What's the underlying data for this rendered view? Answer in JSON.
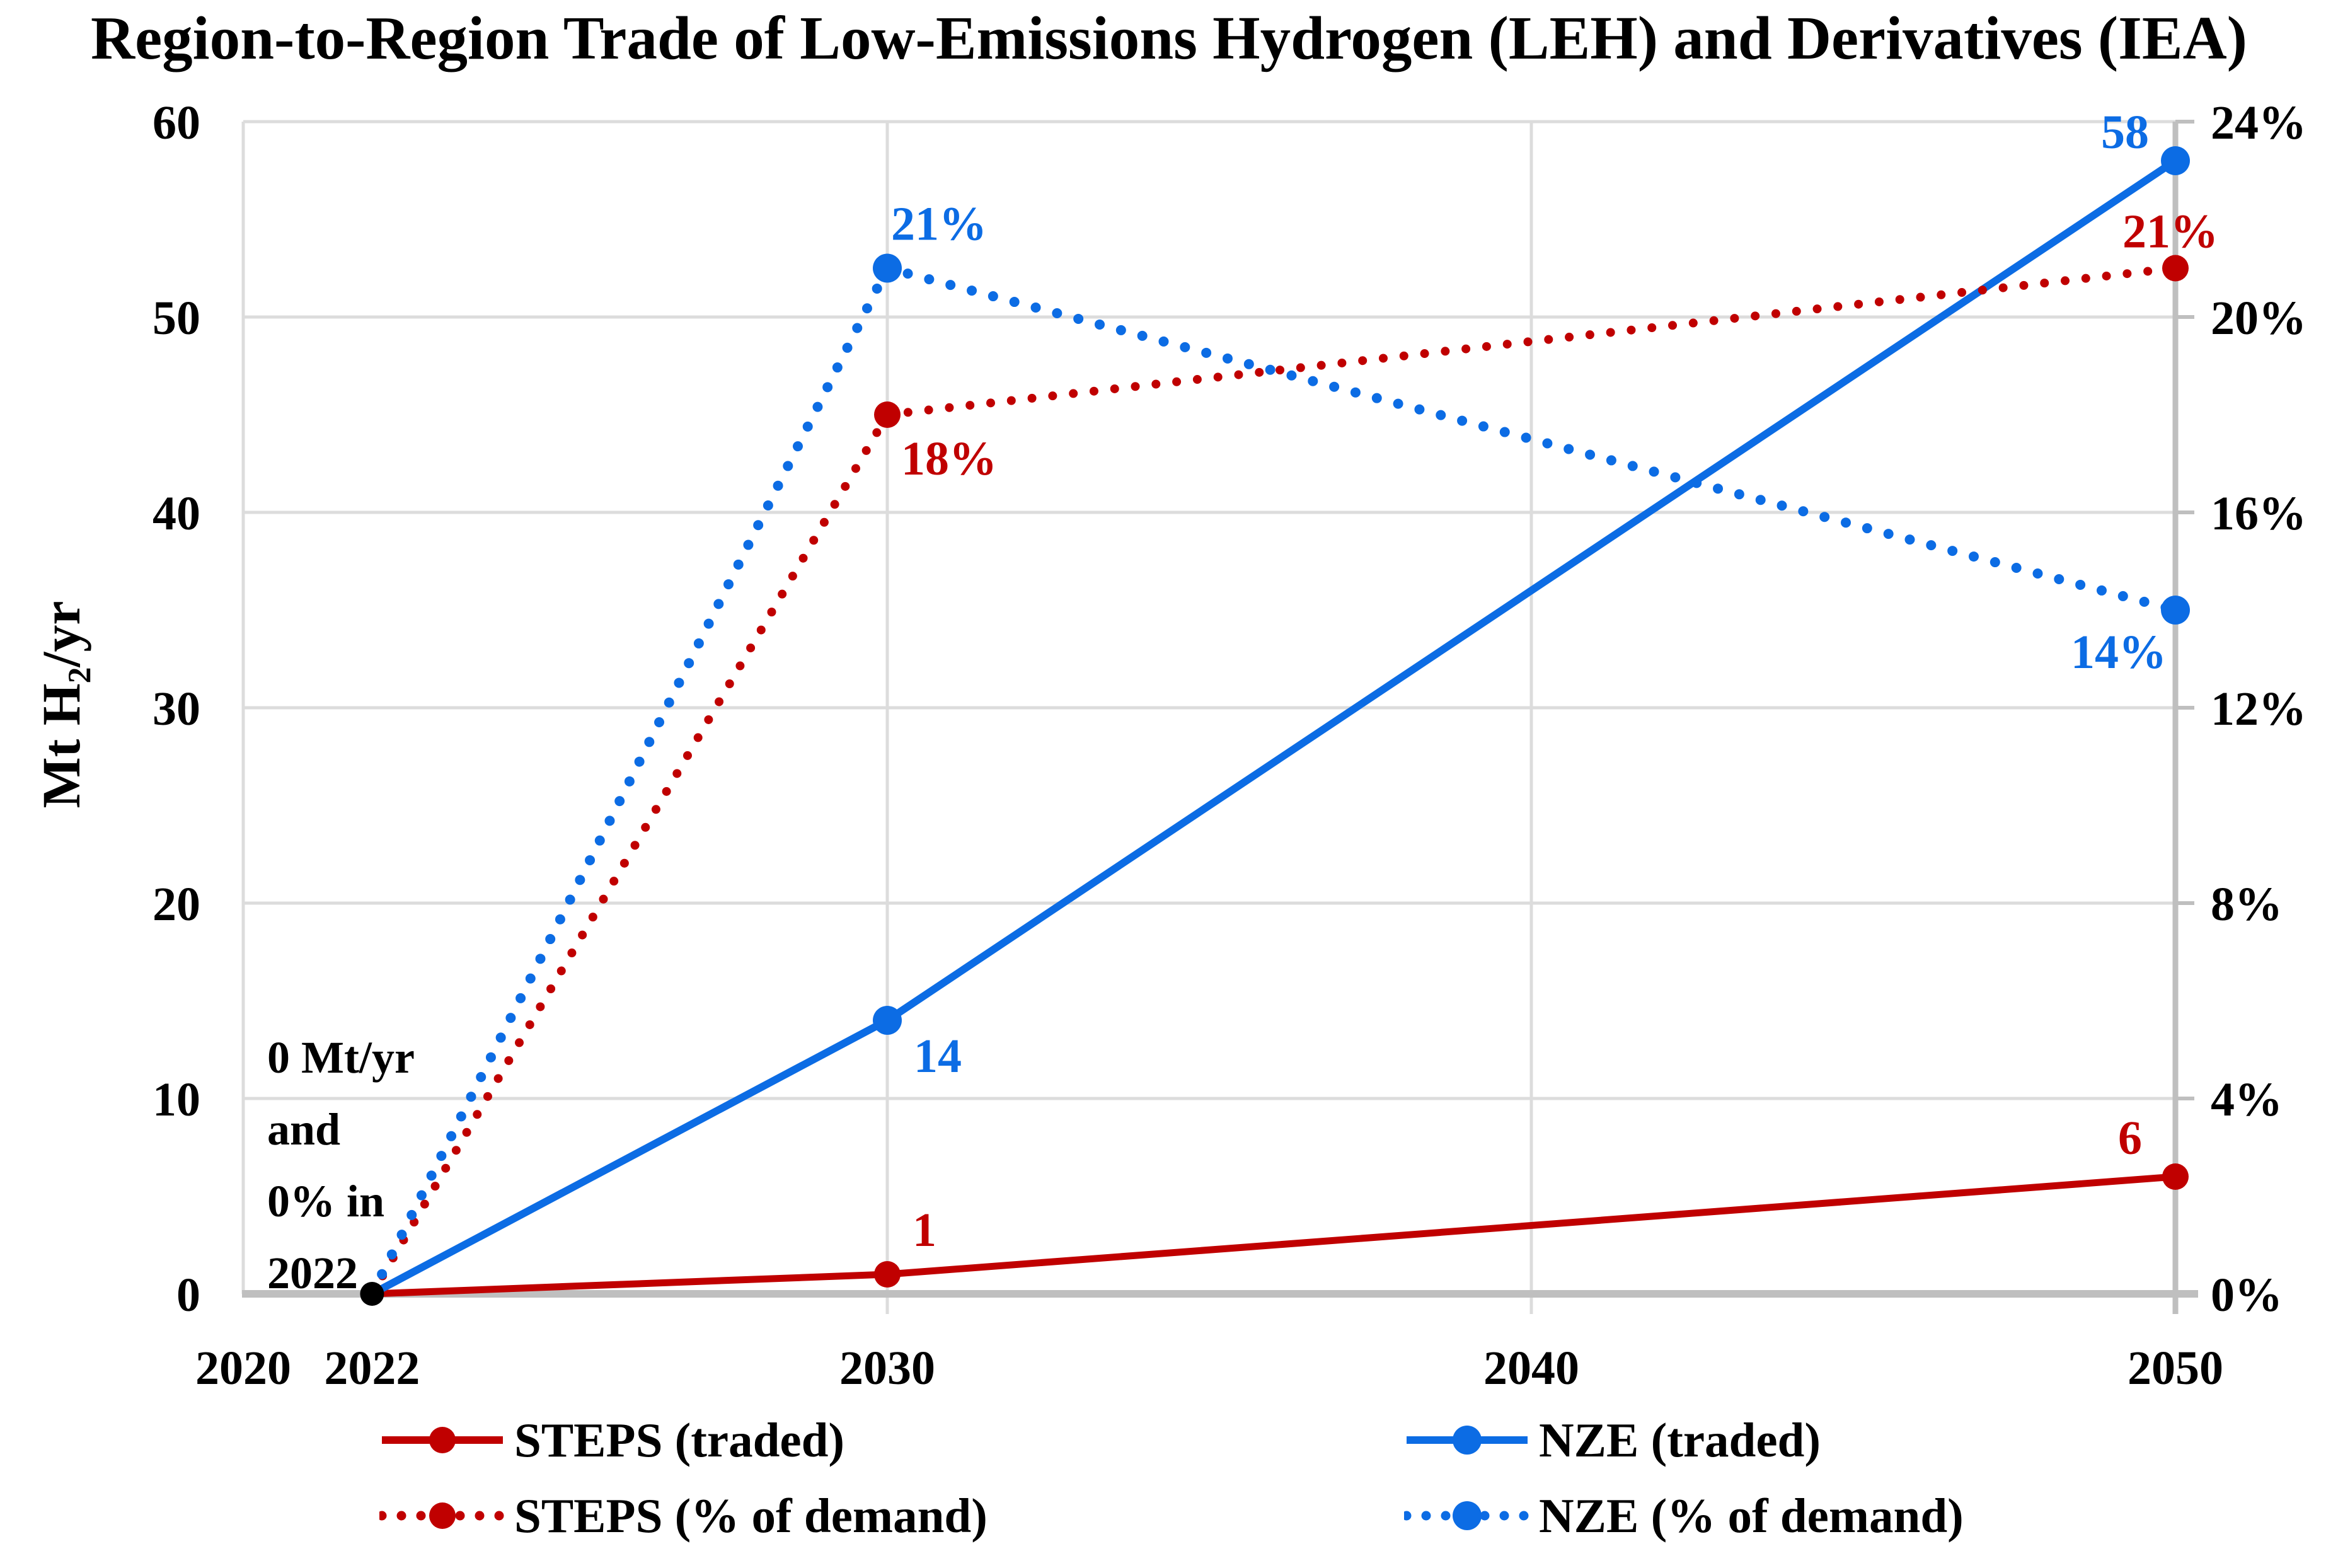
{
  "chart_data": {
    "type": "line",
    "title": "Region-to-Region Trade of Low-Emissions Hydrogen (LEH) and Derivatives (IEA)",
    "ylabel": "Mt H₂/yr",
    "ylabel_right_unit": "%",
    "xlim": [
      2020,
      2050
    ],
    "ylim_left": [
      0,
      60
    ],
    "ylim_right": [
      0,
      24
    ],
    "grid": {
      "horizontal": true,
      "vertical_years": [
        2030,
        2040
      ]
    },
    "legend_position": "below",
    "colors": {
      "steps": "#C00000",
      "nze": "#0C6CE4",
      "gridline": "#DCDCDC",
      "axis_line": "#BFBFBF",
      "origin_marker": "#000000",
      "text": "#000000"
    },
    "x_ticks": [
      {
        "v": 2020,
        "label": "2020"
      },
      {
        "v": 2022,
        "label": "2022"
      },
      {
        "v": 2030,
        "label": "2030"
      },
      {
        "v": 2040,
        "label": "2040"
      },
      {
        "v": 2050,
        "label": "2050"
      }
    ],
    "left_ticks": [
      {
        "v": 0,
        "label": "0"
      },
      {
        "v": 10,
        "label": "10"
      },
      {
        "v": 20,
        "label": "20"
      },
      {
        "v": 30,
        "label": "30"
      },
      {
        "v": 40,
        "label": "40"
      },
      {
        "v": 50,
        "label": "50"
      },
      {
        "v": 60,
        "label": "60"
      }
    ],
    "right_ticks": [
      {
        "v": 0,
        "label": "0%"
      },
      {
        "v": 4,
        "label": "4%"
      },
      {
        "v": 8,
        "label": "8%"
      },
      {
        "v": 12,
        "label": "12%"
      },
      {
        "v": 16,
        "label": "16%"
      },
      {
        "v": 20,
        "label": "20%"
      },
      {
        "v": 24,
        "label": "24%"
      }
    ],
    "series": [
      {
        "name": "STEPS (traded)",
        "color_key": "steps",
        "style": "solid",
        "axis": "left",
        "marker_r": 21,
        "line_w": 11,
        "points": [
          {
            "x": 2022,
            "y": 0
          },
          {
            "x": 2030,
            "y": 1,
            "label": {
              "text": "1",
              "anchor": "start",
              "dx": 40,
              "dy": -45
            }
          },
          {
            "x": 2050,
            "y": 6,
            "label": {
              "text": "6",
              "anchor": "middle",
              "dx": -72,
              "dy": -36
            }
          }
        ]
      },
      {
        "name": "NZE (traded)",
        "color_key": "nze",
        "style": "solid",
        "axis": "left",
        "marker_r": 23,
        "line_w": 12,
        "points": [
          {
            "x": 2022,
            "y": 0
          },
          {
            "x": 2030,
            "y": 14,
            "label": {
              "text": "14",
              "anchor": "start",
              "dx": 42,
              "dy": 82
            }
          },
          {
            "x": 2050,
            "y": 58,
            "label": {
              "text": "58",
              "anchor": "end",
              "dx": -42,
              "dy": -20
            }
          }
        ]
      },
      {
        "name": "STEPS (% of demand)",
        "color_key": "steps",
        "style": "dotted",
        "axis": "right",
        "marker_r": 21,
        "dot_w": 14,
        "dot_gap": 33,
        "points": [
          {
            "x": 2022,
            "y": 0
          },
          {
            "x": 2030,
            "y": 18,
            "label": {
              "text": "18%",
              "anchor": "start",
              "dx": 22,
              "dy": 95
            }
          },
          {
            "x": 2050,
            "y": 21,
            "label": {
              "text": "21%",
              "anchor": "middle",
              "dx": -8,
              "dy": -33
            }
          }
        ]
      },
      {
        "name": "NZE (% of demand)",
        "color_key": "nze",
        "style": "dotted",
        "axis": "right",
        "marker_r": 23,
        "dot_w": 16,
        "dot_gap": 35,
        "points": [
          {
            "x": 2022,
            "y": 0
          },
          {
            "x": 2030,
            "y": 21,
            "label": {
              "text": "21%",
              "anchor": "start",
              "dx": 6,
              "dy": -45
            }
          },
          {
            "x": 2050,
            "y": 14,
            "label": {
              "text": "14%",
              "anchor": "end",
              "dx": -14,
              "dy": 92
            }
          }
        ]
      }
    ],
    "origin_point": {
      "x": 2022,
      "y": 0,
      "marker_r": 19
    },
    "annotation": {
      "lines": [
        "0 Mt/yr",
        "and",
        "0% in",
        "2022"
      ]
    },
    "legend": [
      {
        "label": "STEPS (traded)",
        "color_key": "steps",
        "style": "solid"
      },
      {
        "label": "NZE (traded)",
        "color_key": "nze",
        "style": "solid"
      },
      {
        "label": "STEPS (% of demand)",
        "color_key": "steps",
        "style": "dotted"
      },
      {
        "label": "NZE (% of demand)",
        "color_key": "nze",
        "style": "dotted"
      }
    ]
  }
}
